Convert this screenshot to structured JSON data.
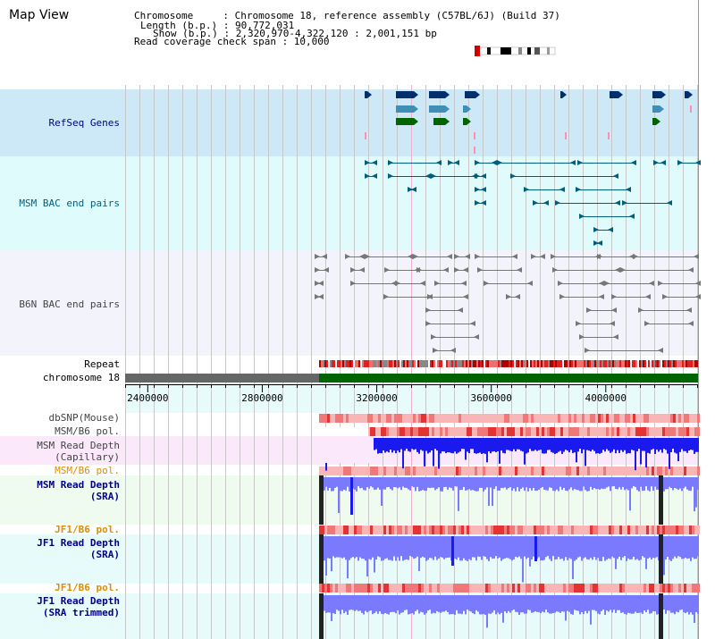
{
  "view_title": "Map View",
  "header": {
    "chromosome_line": "Chromosome     : Chromosome 18, reference assembly (C57BL/6J) (Build 37)",
    "length_line": "Length (b.p.) : 90,772,031",
    "show_line": "Show (b.p.) : 2,320,970-4,322,120 : 2,001,151 bp",
    "coverage_line": "Read coverage check span : 10,000"
  },
  "tracks": {
    "refseq": "RefSeq Genes",
    "msm_bac": "MSM BAC end pairs",
    "b6n_bac": "B6N BAC end pairs",
    "repeat": "Repeat",
    "chromosome": "chromosome 18",
    "dbsnp": "dbSNP(Mouse)",
    "msm_b6_pol_1": "MSM/B6 pol.",
    "msm_depth_cap": "MSM Read Depth\n(Capillary)",
    "msm_b6_pol_2": "MSM/B6 pol.",
    "msm_depth_sra": "MSM Read Depth\n(SRA)",
    "jf1_b6_pol_1": "JF1/B6 pol.",
    "jf1_depth_sra": "JF1 Read Depth\n(SRA)",
    "jf1_b6_pol_2": "JF1/B6 pol.",
    "jf1_depth_trim": "JF1 Read Depth\n(SRA trimmed)"
  },
  "axis": {
    "ticks": [
      "2400000",
      "2800000",
      "3200000",
      "3600000",
      "4000000"
    ],
    "tick_values": [
      2400000,
      2800000,
      3200000,
      3600000,
      4000000
    ],
    "range": [
      2320970,
      4322120
    ]
  },
  "colors": {
    "label_blue": "#00008b",
    "label_teal": "#005f7f",
    "label_gray": "#444444",
    "label_orange": "#e08c00",
    "refseq_bg": "#cde9f7",
    "msm_bg": "#e0fbfb",
    "b6n_bg": "#f3f3fb",
    "gene_navy": "#002f6c",
    "gene_teal": "#3f8fb5",
    "gene_green": "#006400",
    "chromosome_green": "#006400",
    "chromosome_gray": "#666666",
    "depth_blue": "#1a1aee",
    "depth_light": "#7a7aff",
    "pol_red": "#e53333",
    "pol_pink": "#f8b6b6"
  }
}
